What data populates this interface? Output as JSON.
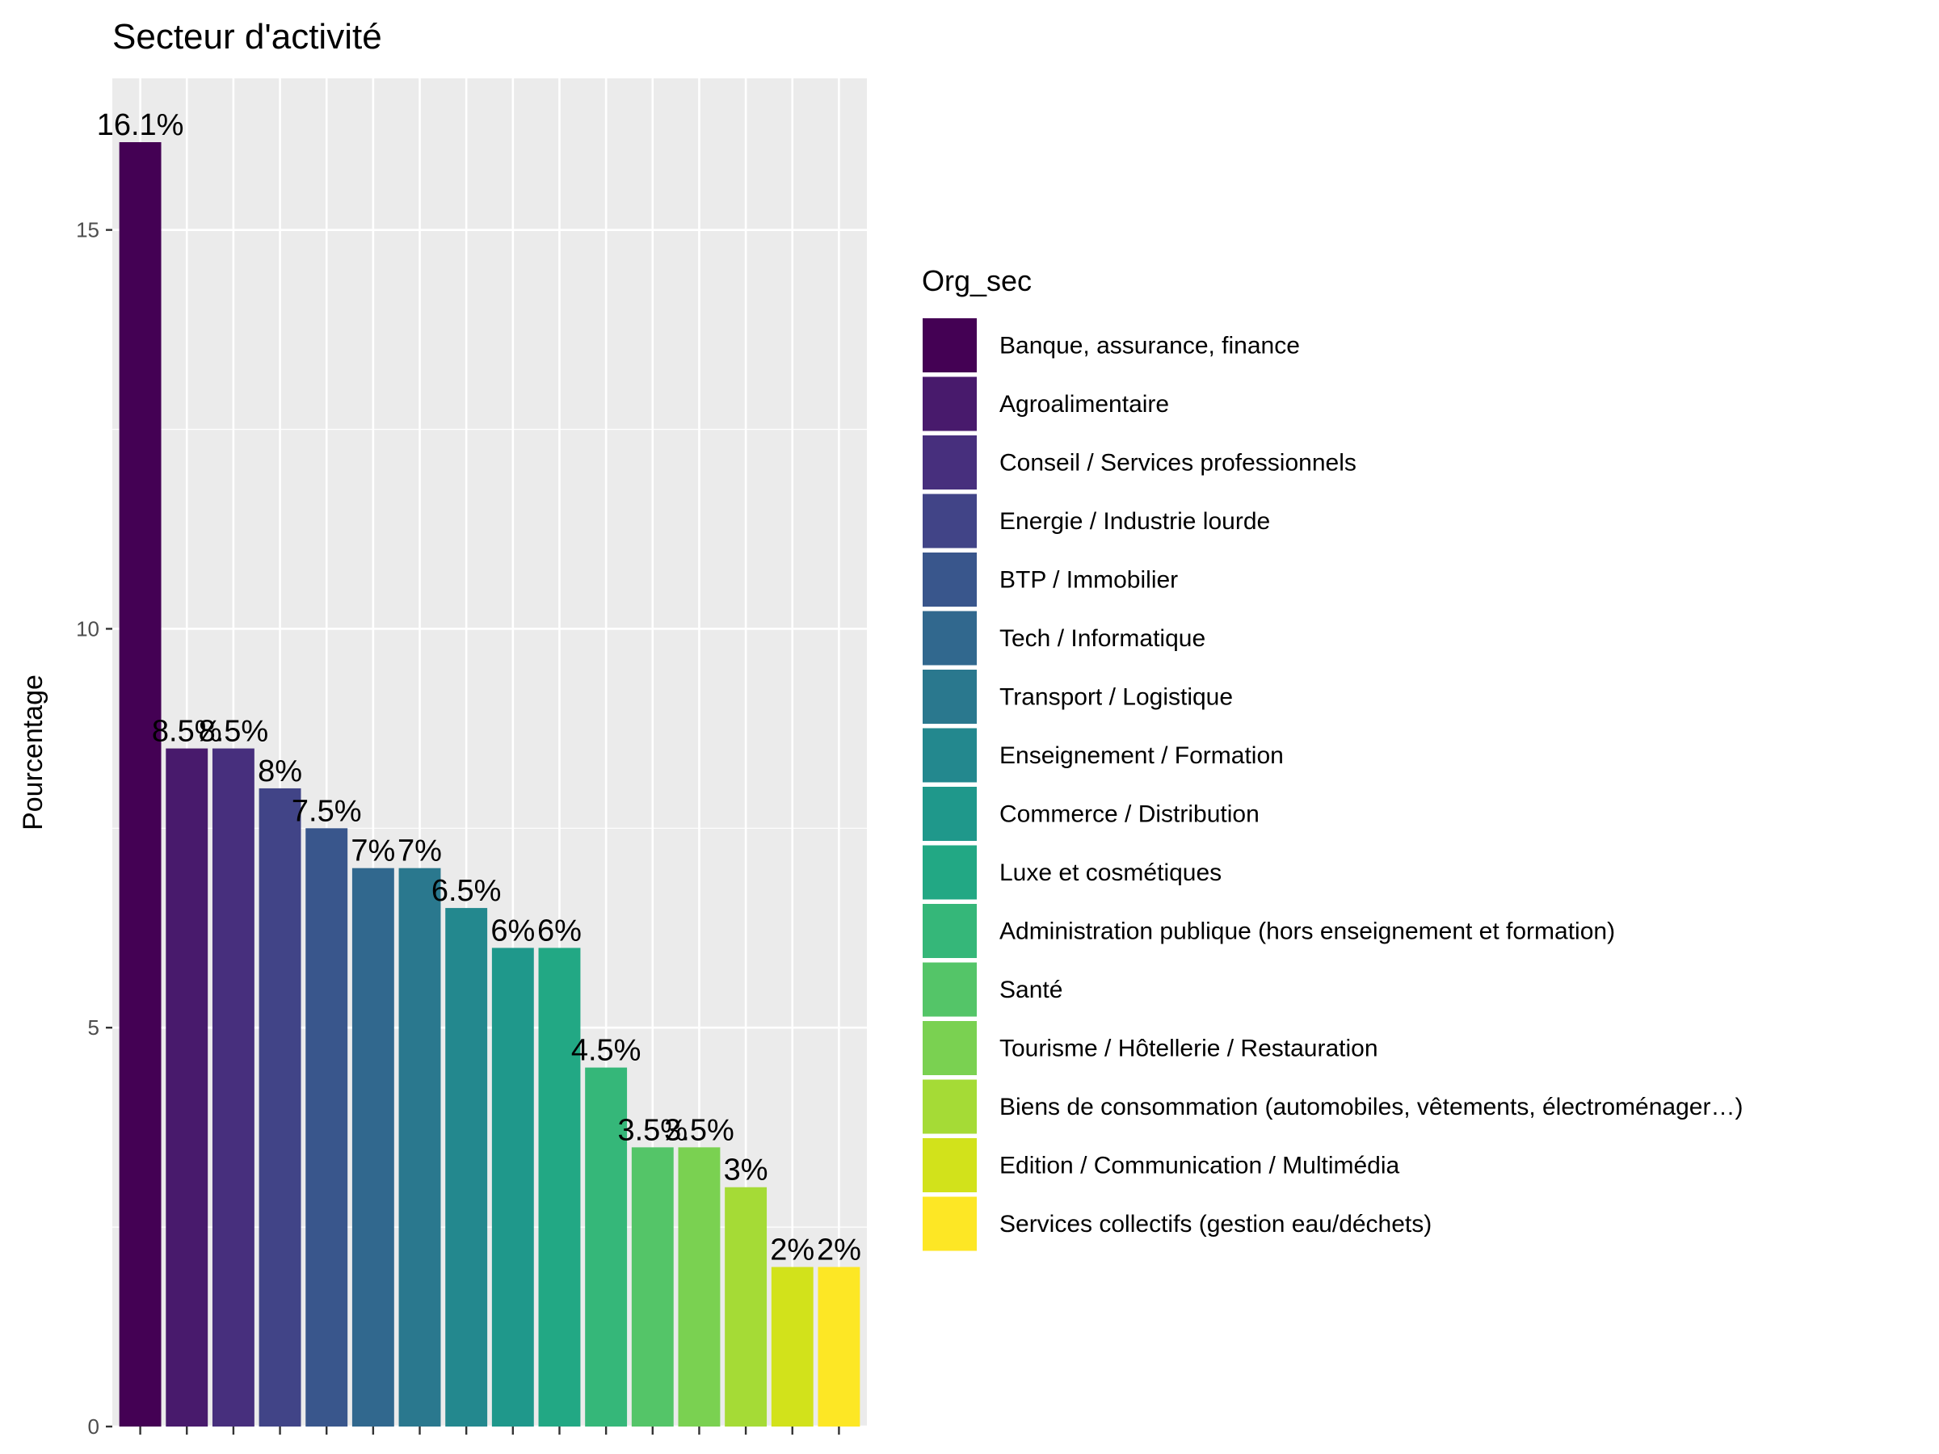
{
  "chart_data": {
    "type": "bar",
    "title": "Secteur d'activité",
    "xlabel": "",
    "ylabel": "Pourcentage",
    "ylim": [
      0,
      16.9
    ],
    "yticks": [
      0,
      5,
      10,
      15
    ],
    "grid": true,
    "legend_position": "right",
    "legend_title": "Org_sec",
    "categories": [
      "Banque, assurance, finance",
      "Agroalimentaire",
      "Conseil / Services professionnels",
      "Energie / Industrie lourde",
      "BTP / Immobilier",
      "Tech / Informatique",
      "Transport / Logistique",
      "Enseignement / Formation",
      "Commerce / Distribution",
      "Luxe et cosmétiques",
      "Administration publique (hors enseignement et formation)",
      "Santé",
      "Tourisme / Hôtellerie / Restauration",
      "Biens de consommation (automobiles, vêtements, électroménager…)",
      "Edition / Communication / Multimédia",
      "Services collectifs (gestion eau/déchets)"
    ],
    "values": [
      16.1,
      8.5,
      8.5,
      8,
      7.5,
      7,
      7,
      6.5,
      6,
      6,
      4.5,
      3.5,
      3.5,
      3,
      2,
      2
    ],
    "labels": [
      "16.1%",
      "8.5%",
      "8.5%",
      "8%",
      "7.5%",
      "7%",
      "7%",
      "6.5%",
      "6%",
      "6%",
      "4.5%",
      "3.5%",
      "3.5%",
      "3%",
      "2%",
      "2%"
    ],
    "colors": [
      "#440154",
      "#481a6c",
      "#472f7d",
      "#414487",
      "#39568c",
      "#31688e",
      "#2a788e",
      "#23888e",
      "#1f988b",
      "#22a884",
      "#35b779",
      "#54c568",
      "#7ad151",
      "#a5db36",
      "#d2e21b",
      "#fde725"
    ],
    "panel_background": "#ebebeb",
    "grid_color": "#ffffff"
  }
}
